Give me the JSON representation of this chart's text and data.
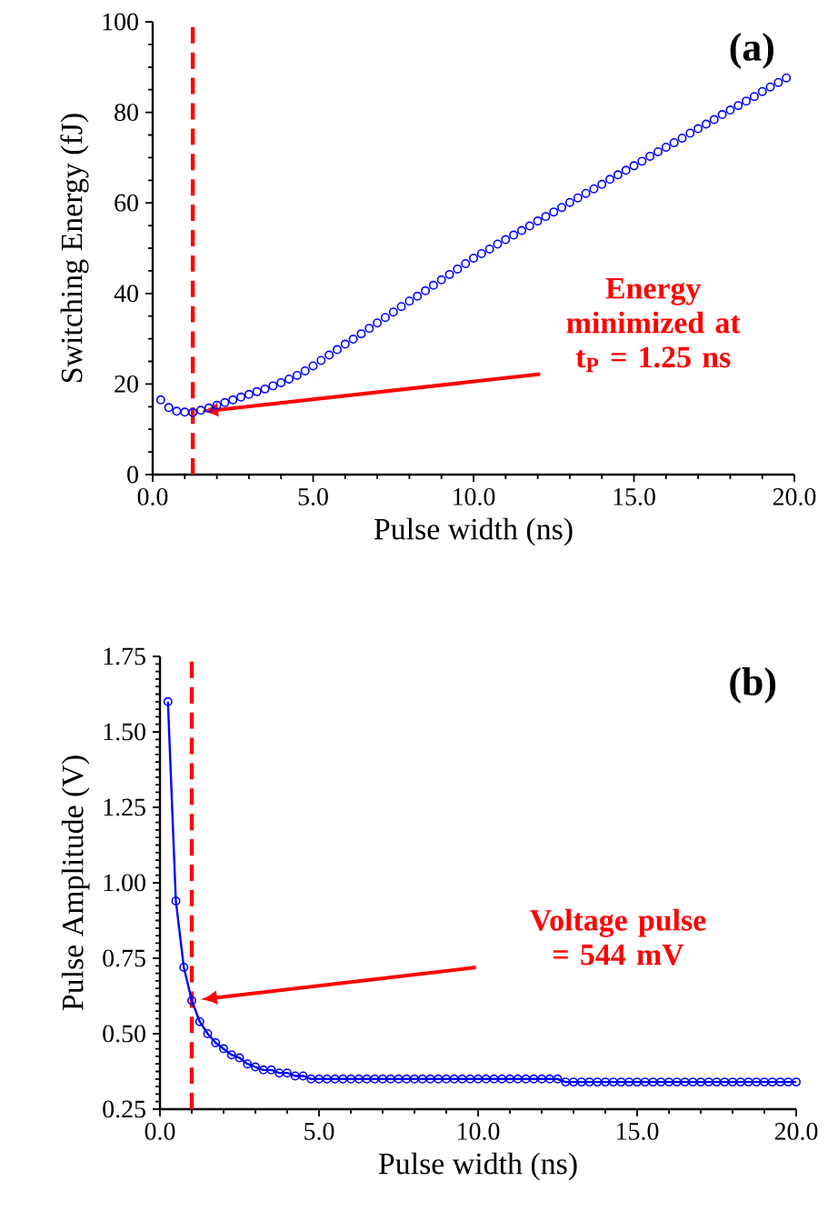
{
  "chart_data": [
    {
      "type": "scatter",
      "xlabel": "Pulse width (ns)",
      "ylabel": "Switching Energy (fJ)",
      "marker": "circle",
      "xlim": [
        0,
        20
      ],
      "ylim": [
        0,
        100
      ],
      "xticks": [
        {
          "value": 0,
          "label": "0.0"
        },
        {
          "value": 5,
          "label": "5.0"
        },
        {
          "value": 10,
          "label": "10.0"
        },
        {
          "value": 15,
          "label": "15.0"
        },
        {
          "value": 20,
          "label": "20.0"
        }
      ],
      "yticks": [
        0,
        20,
        40,
        60,
        80,
        100
      ],
      "series": [
        {
          "color": "#0000ff",
          "x": [
            0.25,
            0.5,
            0.75,
            1.0,
            1.25,
            1.5,
            1.75,
            2.0,
            2.25,
            2.5,
            2.75,
            3.0,
            3.25,
            3.5,
            3.75,
            4.0,
            4.25,
            4.5,
            4.75,
            5.0,
            5.25,
            5.5,
            5.75,
            6.0,
            6.25,
            6.5,
            6.75,
            7.0,
            7.25,
            7.5,
            7.75,
            8.0,
            8.25,
            8.5,
            8.75,
            9.0,
            9.25,
            9.5,
            9.75,
            10.0,
            10.25,
            10.5,
            10.75,
            11.0,
            11.25,
            11.5,
            11.75,
            12.0,
            12.25,
            12.5,
            12.75,
            13.0,
            13.25,
            13.5,
            13.75,
            14.0,
            14.25,
            14.5,
            14.75,
            15.0,
            15.25,
            15.5,
            15.75,
            16.0,
            16.25,
            16.5,
            16.75,
            17.0,
            17.25,
            17.5,
            17.75,
            18.0,
            18.25,
            18.5,
            18.75,
            19.0,
            19.25,
            19.5,
            19.75
          ],
          "values": [
            16.5,
            14.8,
            14.0,
            13.8,
            13.7,
            14.2,
            14.7,
            15.3,
            15.9,
            16.5,
            17.1,
            17.7,
            18.3,
            18.9,
            19.6,
            20.3,
            21.1,
            21.9,
            22.9,
            24.0,
            25.2,
            26.4,
            27.6,
            28.8,
            29.9,
            31.1,
            32.3,
            33.5,
            34.7,
            35.9,
            37.1,
            38.3,
            39.4,
            40.6,
            41.8,
            43.0,
            44.2,
            45.4,
            46.6,
            47.8,
            48.8,
            49.8,
            50.9,
            51.9,
            52.9,
            53.9,
            54.9,
            56.0,
            57.0,
            58.0,
            59.0,
            60.1,
            61.1,
            62.1,
            63.1,
            64.1,
            65.2,
            66.2,
            67.2,
            68.2,
            69.2,
            70.3,
            71.3,
            72.3,
            73.3,
            74.3,
            75.4,
            76.4,
            77.4,
            78.4,
            79.5,
            80.5,
            81.5,
            82.5,
            83.5,
            84.6,
            85.6,
            86.6,
            87.6
          ]
        }
      ],
      "ref_lines": [
        {
          "axis": "x",
          "value": 1.25,
          "color": "#ff0000",
          "line_style": "dashed"
        }
      ],
      "annotations": [
        "(a)",
        "Energy minimized at t$_{P}$ = 1.25 ns"
      ]
    },
    {
      "type": "line",
      "xlabel": "Pulse width (ns)",
      "ylabel": "Pulse Amplitude (V)",
      "marker": "circle",
      "line_style": "solid",
      "xlim": [
        0,
        20
      ],
      "ylim": [
        0.25,
        1.75
      ],
      "xticks": [
        {
          "value": 0,
          "label": "0.0"
        },
        {
          "value": 5,
          "label": "5.0"
        },
        {
          "value": 10,
          "label": "10.0"
        },
        {
          "value": 15,
          "label": "15.0"
        },
        {
          "value": 20,
          "label": "20.0"
        }
      ],
      "yticks": [
        {
          "value": 0.25,
          "label": "0.25"
        },
        {
          "value": 0.5,
          "label": "0.50"
        },
        {
          "value": 0.75,
          "label": "0.75"
        },
        {
          "value": 1.0,
          "label": "1.00"
        },
        {
          "value": 1.25,
          "label": "1.25"
        },
        {
          "value": 1.5,
          "label": "1.50"
        },
        {
          "value": 1.75,
          "label": "1.75"
        }
      ],
      "series": [
        {
          "color": "#0000ff",
          "x": [
            0.25,
            0.5,
            0.75,
            1.0,
            1.25,
            1.5,
            1.75,
            2.0,
            2.25,
            2.5,
            2.75,
            3.0,
            3.25,
            3.5,
            3.75,
            4.0,
            4.25,
            4.5,
            4.75,
            5.0,
            5.25,
            5.5,
            5.75,
            6.0,
            6.25,
            6.5,
            6.75,
            7.0,
            7.25,
            7.5,
            7.75,
            8.0,
            8.25,
            8.5,
            8.75,
            9.0,
            9.25,
            9.5,
            9.75,
            10.0,
            10.25,
            10.5,
            10.75,
            11.0,
            11.25,
            11.5,
            11.75,
            12.0,
            12.25,
            12.5,
            12.75,
            13.0,
            13.25,
            13.5,
            13.75,
            14.0,
            14.25,
            14.5,
            14.75,
            15.0,
            15.25,
            15.5,
            15.75,
            16.0,
            16.25,
            16.5,
            16.75,
            17.0,
            17.25,
            17.5,
            17.75,
            18.0,
            18.25,
            18.5,
            18.75,
            19.0,
            19.25,
            19.5,
            19.75,
            20.0
          ],
          "values": [
            1.6,
            0.94,
            0.72,
            0.61,
            0.54,
            0.5,
            0.47,
            0.45,
            0.43,
            0.42,
            0.4,
            0.39,
            0.38,
            0.38,
            0.37,
            0.37,
            0.36,
            0.36,
            0.35,
            0.35,
            0.35,
            0.35,
            0.35,
            0.35,
            0.35,
            0.35,
            0.35,
            0.35,
            0.35,
            0.35,
            0.35,
            0.35,
            0.35,
            0.35,
            0.35,
            0.35,
            0.35,
            0.35,
            0.35,
            0.35,
            0.35,
            0.35,
            0.35,
            0.35,
            0.35,
            0.35,
            0.35,
            0.35,
            0.35,
            0.35,
            0.34,
            0.34,
            0.34,
            0.34,
            0.34,
            0.34,
            0.34,
            0.34,
            0.34,
            0.34,
            0.34,
            0.34,
            0.34,
            0.34,
            0.34,
            0.34,
            0.34,
            0.34,
            0.34,
            0.34,
            0.34,
            0.34,
            0.34,
            0.34,
            0.34,
            0.34,
            0.34,
            0.34,
            0.34,
            0.34
          ]
        }
      ],
      "ref_lines": [
        {
          "axis": "x",
          "value": 1.0,
          "color": "#ff0000",
          "line_style": "dashed"
        }
      ],
      "annotations": [
        "(b)",
        "Voltage pulse = 544 mV"
      ]
    }
  ]
}
